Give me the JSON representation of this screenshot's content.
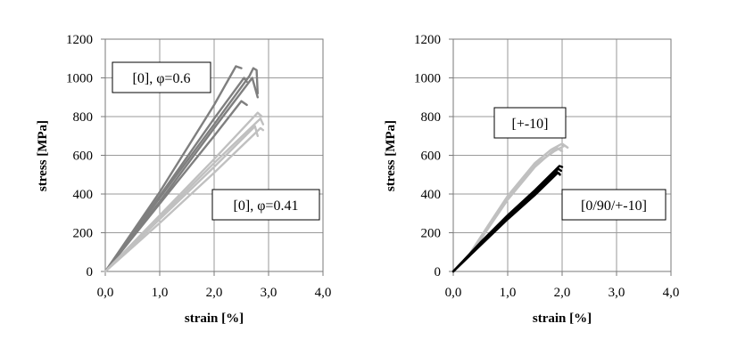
{
  "chart_data": [
    {
      "type": "line",
      "xlabel": "strain [%]",
      "ylabel": "stress [MPa]",
      "xlim": [
        0,
        4
      ],
      "ylim": [
        0,
        1200
      ],
      "xticks": [
        "0,0",
        "1,0",
        "2,0",
        "3,0",
        "4,0"
      ],
      "yticks": [
        "0",
        "200",
        "400",
        "600",
        "800",
        "1000",
        "1200"
      ],
      "grid": true,
      "annotations": [
        {
          "text": "[0], φ=0.6",
          "series": "phi_0.6"
        },
        {
          "text": "[0], φ=0.41",
          "series": "phi_0.41"
        }
      ],
      "series": [
        {
          "name": "[0], φ=0.6 #1",
          "color": "#7f7f7f",
          "x": [
            0,
            1.0,
            2.0,
            2.4,
            2.5
          ],
          "y": [
            0,
            410,
            860,
            1060,
            1050
          ]
        },
        {
          "name": "[0], φ=0.6 #2",
          "color": "#7f7f7f",
          "x": [
            0,
            1.0,
            2.0,
            2.55,
            2.6
          ],
          "y": [
            0,
            390,
            790,
            1000,
            980
          ]
        },
        {
          "name": "[0], φ=0.6 #3",
          "color": "#7f7f7f",
          "x": [
            0,
            1.0,
            2.0,
            2.65,
            2.72,
            2.78,
            2.8
          ],
          "y": [
            0,
            380,
            760,
            1010,
            1050,
            1040,
            920
          ]
        },
        {
          "name": "[0], φ=0.6 #4",
          "color": "#7f7f7f",
          "x": [
            0,
            1.0,
            2.0,
            2.7,
            2.8
          ],
          "y": [
            0,
            360,
            740,
            1000,
            900
          ]
        },
        {
          "name": "[0], φ=0.6 #5",
          "color": "#7f7f7f",
          "x": [
            0,
            1.0,
            2.0,
            2.5,
            2.6
          ],
          "y": [
            0,
            350,
            700,
            880,
            860
          ]
        },
        {
          "name": "[0], φ=0.41 #1",
          "color": "#c0c0c0",
          "x": [
            0,
            1.0,
            2.0,
            2.8,
            2.88
          ],
          "y": [
            0,
            290,
            580,
            820,
            800
          ]
        },
        {
          "name": "[0], φ=0.41 #2",
          "color": "#c0c0c0",
          "x": [
            0,
            1.0,
            2.0,
            2.85,
            2.9
          ],
          "y": [
            0,
            280,
            560,
            790,
            760
          ]
        },
        {
          "name": "[0], φ=0.41 #3",
          "color": "#c0c0c0",
          "x": [
            0,
            1.0,
            2.0,
            2.75,
            2.8
          ],
          "y": [
            0,
            270,
            540,
            750,
            700
          ]
        },
        {
          "name": "[0], φ=0.41 #4",
          "color": "#c0c0c0",
          "x": [
            0,
            1.0,
            2.0,
            2.85,
            2.9
          ],
          "y": [
            0,
            250,
            510,
            740,
            730
          ]
        }
      ]
    },
    {
      "type": "line",
      "xlabel": "strain [%]",
      "ylabel": "stress [MPa]",
      "xlim": [
        0,
        4
      ],
      "ylim": [
        0,
        1200
      ],
      "xticks": [
        "0,0",
        "1,0",
        "2,0",
        "3,0",
        "4,0"
      ],
      "yticks": [
        "0",
        "200",
        "400",
        "600",
        "800",
        "1000",
        "1200"
      ],
      "grid": true,
      "annotations": [
        {
          "text": "[+-10]",
          "series": "pm10"
        },
        {
          "text": "[0/90/+-10]",
          "series": "0_90_pm10"
        }
      ],
      "series": [
        {
          "name": "[+-10] #1",
          "color": "#c0c0c0",
          "x": [
            0,
            0.3,
            0.6,
            1.0,
            1.5,
            1.8,
            2.0,
            2.1
          ],
          "y": [
            0,
            90,
            220,
            390,
            560,
            630,
            660,
            640
          ]
        },
        {
          "name": "[+-10] #2",
          "color": "#c0c0c0",
          "x": [
            0,
            0.3,
            0.6,
            1.0,
            1.5,
            1.85,
            2.05,
            2.1
          ],
          "y": [
            0,
            85,
            210,
            380,
            550,
            620,
            650,
            640
          ]
        },
        {
          "name": "[+-10] #3",
          "color": "#c0c0c0",
          "x": [
            0,
            0.3,
            0.6,
            1.0,
            1.5,
            1.9,
            2.0
          ],
          "y": [
            0,
            80,
            205,
            370,
            540,
            640,
            620
          ]
        },
        {
          "name": "[0/90/+-10] #1",
          "color": "#000000",
          "x": [
            0,
            0.5,
            1.0,
            1.5,
            1.95,
            2.0
          ],
          "y": [
            0,
            150,
            290,
            420,
            545,
            540
          ]
        },
        {
          "name": "[0/90/+-10] #2",
          "color": "#000000",
          "x": [
            0,
            0.5,
            1.0,
            1.5,
            1.93,
            1.98
          ],
          "y": [
            0,
            145,
            280,
            410,
            530,
            520
          ]
        },
        {
          "name": "[0/90/+-10] #3",
          "color": "#000000",
          "x": [
            0,
            0.5,
            1.0,
            1.5,
            1.9,
            1.95
          ],
          "y": [
            0,
            140,
            275,
            400,
            515,
            505
          ]
        },
        {
          "name": "[0/90/+-10] #4",
          "color": "#000000",
          "x": [
            0,
            0.5,
            1.0,
            1.5,
            1.92,
            1.96
          ],
          "y": [
            0,
            135,
            270,
            395,
            510,
            500
          ]
        }
      ]
    }
  ]
}
